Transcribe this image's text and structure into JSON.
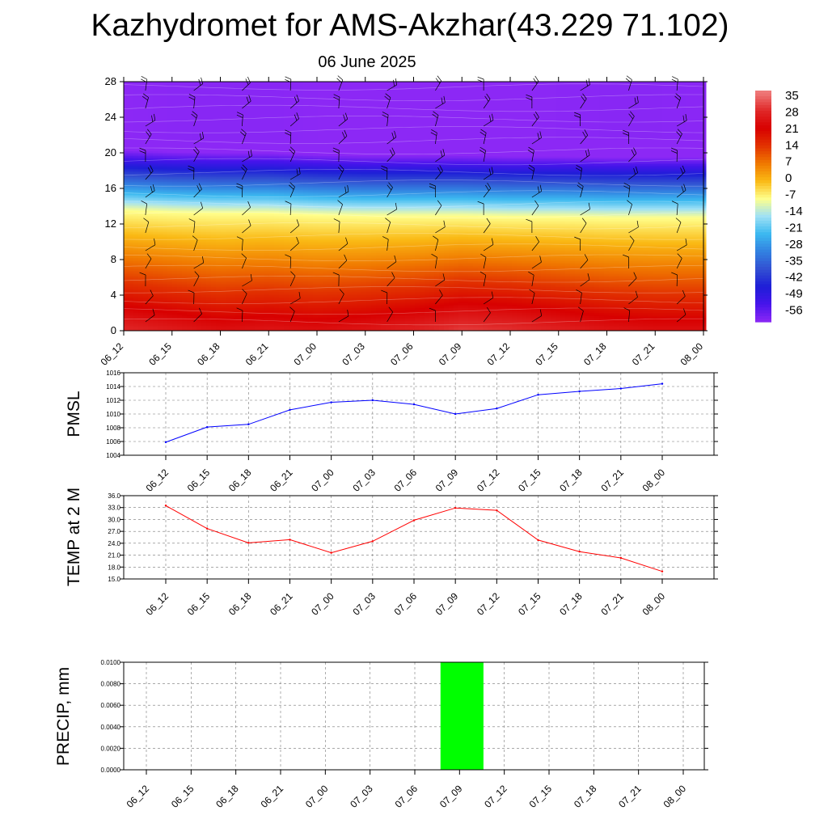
{
  "page": {
    "title": "Kazhydromet for AMS-Akzhar(43.229 71.102)",
    "subtitle": "06 June 2025"
  },
  "chart_data": [
    {
      "type": "heatmap",
      "name": "temperature-wind-cross-section",
      "y_ticks": [
        0,
        4,
        8,
        12,
        16,
        20,
        24,
        28
      ],
      "ylim": [
        0,
        28
      ],
      "x_ticks": [
        "06_12",
        "06_15",
        "06_18",
        "06_21",
        "07_00",
        "07_03",
        "07_06",
        "07_09",
        "07_12",
        "07_15",
        "07_18",
        "07_21",
        "08_00"
      ],
      "surface_temp": [
        28,
        26,
        24,
        25,
        24,
        25,
        27,
        30,
        29,
        27,
        25,
        24,
        24
      ],
      "freezing_level": [
        13.5,
        13.3,
        13.2,
        13.2,
        13.0,
        12.9,
        12.9,
        12.9,
        12.8,
        12.8,
        12.7,
        12.7,
        12.7
      ],
      "colorbar_labels": [
        "35",
        "28",
        "21",
        "14",
        "7",
        "0",
        "-7",
        "-14",
        "-21",
        "-28",
        "-35",
        "-42",
        "-49",
        "-56"
      ],
      "colorbar_values": [
        35,
        28,
        21,
        14,
        7,
        0,
        -7,
        -14,
        -21,
        -28,
        -35,
        -42,
        -49,
        -56
      ],
      "colors": {
        "warmest": "#e05050",
        "hot": "#d80000",
        "orange": "#f59a00",
        "yellow": "#ffff9a",
        "cyan": "#40b8f0",
        "blue": "#1a1ad8",
        "violet": "#8a2cf5"
      }
    },
    {
      "type": "line",
      "ylabel": "PMSL",
      "ylim": [
        1004,
        1016
      ],
      "y_ticks": [
        "1004",
        "1006",
        "1008",
        "1010",
        "1012",
        "1014",
        "1016"
      ],
      "x": [
        "06_12",
        "06_15",
        "06_18",
        "06_21",
        "07_00",
        "07_03",
        "07_06",
        "07_09",
        "07_12",
        "07_15",
        "07_18",
        "07_21",
        "08_00"
      ],
      "values": [
        1005.9,
        1008.1,
        1008.5,
        1010.6,
        1011.7,
        1012.0,
        1011.4,
        1010.0,
        1010.8,
        1012.8,
        1013.3,
        1013.7,
        1014.4
      ],
      "color": "#0000ff",
      "grid": true
    },
    {
      "type": "line",
      "ylabel": "TEMP at 2 M",
      "ylim": [
        15,
        36
      ],
      "y_ticks": [
        "15.0",
        "18.0",
        "21.0",
        "24.0",
        "27.0",
        "30.0",
        "33.0",
        "36.0"
      ],
      "x": [
        "06_12",
        "06_15",
        "06_18",
        "06_21",
        "07_00",
        "07_03",
        "07_06",
        "07_09",
        "07_12",
        "07_15",
        "07_18",
        "07_21",
        "08_00"
      ],
      "values": [
        33.5,
        27.7,
        24.1,
        24.9,
        21.6,
        24.5,
        29.8,
        32.9,
        32.3,
        24.8,
        21.9,
        20.3,
        16.9
      ],
      "color": "#ff0000",
      "grid": true
    },
    {
      "type": "bar",
      "ylabel": "PRECIP, mm",
      "ylim": [
        0,
        0.01
      ],
      "y_ticks": [
        "0.0000",
        "0.0020",
        "0.0040",
        "0.0060",
        "0.0080",
        "0.0100"
      ],
      "categories": [
        "06_12",
        "06_15",
        "06_18",
        "06_21",
        "07_00",
        "07_03",
        "07_06",
        "07_09",
        "07_12",
        "07_15",
        "07_18",
        "07_21",
        "08_00"
      ],
      "values": [
        0,
        0,
        0,
        0,
        0,
        0,
        0,
        0.01,
        0,
        0,
        0,
        0,
        0
      ],
      "color": "#00ff00",
      "grid": true
    }
  ]
}
